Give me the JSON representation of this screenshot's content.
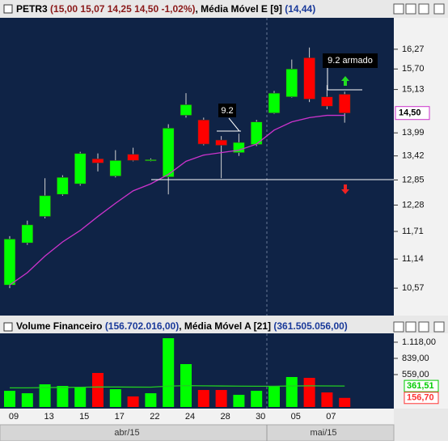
{
  "chart_data": [
    {
      "type": "candlestick",
      "title": "PETR3",
      "title_values": "(15,00 15,07 14,25 14,50 -1,02%)",
      "open": [
        10.63,
        11.47,
        12.03,
        12.52,
        12.76,
        13.35,
        12.94,
        13.46,
        13.33,
        12.92,
        14.44,
        14.32,
        13.81,
        13.5,
        13.7,
        14.5,
        14.93,
        16.02,
        14.93,
        15.0
      ],
      "high": [
        11.61,
        11.94,
        12.89,
        12.96,
        13.52,
        13.48,
        13.56,
        13.62,
        13.36,
        14.21,
        15.03,
        14.38,
        13.91,
        13.97,
        14.32,
        15.09,
        15.97,
        16.32,
        15.25,
        15.07
      ],
      "low": [
        10.57,
        11.43,
        11.99,
        12.49,
        12.72,
        13.05,
        12.91,
        13.29,
        13.29,
        12.52,
        14.38,
        13.68,
        12.89,
        13.42,
        13.66,
        14.48,
        14.91,
        14.79,
        14.6,
        14.25
      ],
      "close": [
        11.55,
        11.85,
        12.49,
        12.91,
        13.48,
        13.25,
        13.31,
        13.31,
        13.33,
        14.11,
        14.72,
        13.71,
        13.68,
        13.75,
        14.27,
        15.03,
        15.7,
        14.87,
        14.68,
        14.5
      ],
      "up_color": "#00ff00",
      "down_color": "#ff0000",
      "series": [
        {
          "name": "Média Móvel E [9]",
          "value_label": "(14,44)",
          "color": "#cc33cc",
          "values": [
            10.63,
            10.87,
            11.2,
            11.49,
            11.73,
            12.03,
            12.32,
            12.6,
            12.76,
            12.98,
            13.29,
            13.44,
            13.5,
            13.56,
            13.71,
            14.06,
            14.27,
            14.38,
            14.44,
            14.44
          ]
        }
      ],
      "log_scale": true,
      "ylim": [
        10.06,
        17.22
      ],
      "yticks": [
        {
          "value": 16.27,
          "label": "16,27"
        },
        {
          "value": 15.7,
          "label": "15,70"
        },
        {
          "value": 15.13,
          "label": "15,13"
        },
        {
          "value": 13.99,
          "label": "13,99"
        },
        {
          "value": 13.42,
          "label": "13,42"
        },
        {
          "value": 12.85,
          "label": "12,85"
        },
        {
          "value": 12.28,
          "label": "12,28"
        },
        {
          "value": 11.71,
          "label": "11,71"
        },
        {
          "value": 11.14,
          "label": "11,14"
        },
        {
          "value": 10.57,
          "label": "10,57"
        }
      ],
      "last_price": {
        "value": 14.5,
        "label": "14,50"
      },
      "annotations": [
        "9.2",
        "9.2 armado"
      ]
    },
    {
      "type": "bar",
      "categories": [
        "09",
        null,
        "13",
        null,
        "15",
        null,
        "17",
        null,
        "22",
        null,
        "24",
        null,
        "28",
        null,
        "30",
        null,
        "05",
        null,
        "07",
        null
      ],
      "x_groups": [
        "abr/15",
        "mai/15"
      ],
      "series": [
        {
          "name": "Volume Financeiro",
          "value_label": "(156.702.016,00)",
          "values": [
            279,
            237,
            391,
            363,
            335,
            587,
            307,
            182,
            237,
            1187,
            740,
            293,
            293,
            210,
            279,
            363,
            517,
            503,
            251,
            156.7
          ]
        },
        {
          "name": "Média Móvel A [21]",
          "value_label": "(361.505.056,00)",
          "color": "#22cc22",
          "values": [
            330,
            330,
            335,
            338,
            340,
            345,
            345,
            343,
            342,
            360,
            368,
            365,
            362,
            360,
            358,
            358,
            362,
            365,
            363,
            361.51
          ]
        }
      ],
      "ylim": [
        0,
        1271
      ],
      "yticks": [
        {
          "value": 559,
          "label": "559,00"
        },
        {
          "value": 839,
          "label": "839,00"
        },
        {
          "value": 1118,
          "label": "1.118,00"
        }
      ],
      "last_labels": [
        {
          "value": 361.51,
          "label": "361,51",
          "color": "#00cc00"
        },
        {
          "value": 156.7,
          "label": "156,70",
          "color": "#ff3333"
        }
      ]
    }
  ]
}
